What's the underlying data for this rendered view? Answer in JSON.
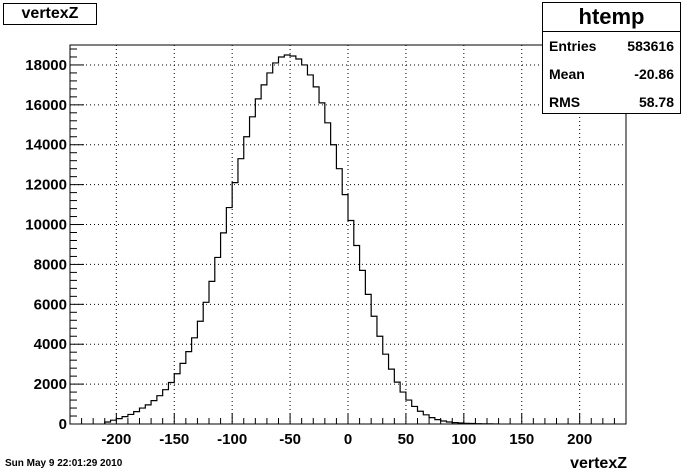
{
  "title": "vertexZ",
  "timestamp": "Sun May  9 22:01:29 2010",
  "stats": {
    "name": "htemp",
    "rows": [
      {
        "label": "Entries",
        "value": "583616"
      },
      {
        "label": "Mean",
        "value": "-20.86"
      },
      {
        "label": "RMS",
        "value": "58.78"
      }
    ]
  },
  "chart_data": {
    "type": "bar",
    "title": "vertexZ",
    "xlabel": "vertexZ",
    "ylabel": "",
    "xlim": [
      -240,
      240
    ],
    "ylim": [
      0,
      19000
    ],
    "grid": true,
    "xticks": [
      -200,
      -150,
      -100,
      -50,
      0,
      50,
      100,
      150,
      200
    ],
    "yticks": [
      0,
      2000,
      4000,
      6000,
      8000,
      10000,
      12000,
      14000,
      16000,
      18000
    ],
    "bin_width": 5,
    "bin_edges_start": -210,
    "values": [
      100,
      190,
      270,
      370,
      480,
      620,
      800,
      960,
      1170,
      1420,
      1720,
      2080,
      2520,
      3040,
      3630,
      4320,
      5150,
      6100,
      7150,
      8350,
      9580,
      10850,
      12100,
      13300,
      14400,
      15400,
      16300,
      17000,
      17600,
      18100,
      18400,
      18500,
      18450,
      18300,
      18000,
      17500,
      16900,
      16100,
      15100,
      14000,
      12800,
      11500,
      10200,
      8950,
      7700,
      6500,
      5400,
      4400,
      3500,
      2750,
      2100,
      1600,
      1200,
      880,
      640,
      460,
      320,
      220,
      150,
      100,
      70,
      50,
      35,
      25,
      15,
      10,
      5,
      3
    ]
  }
}
